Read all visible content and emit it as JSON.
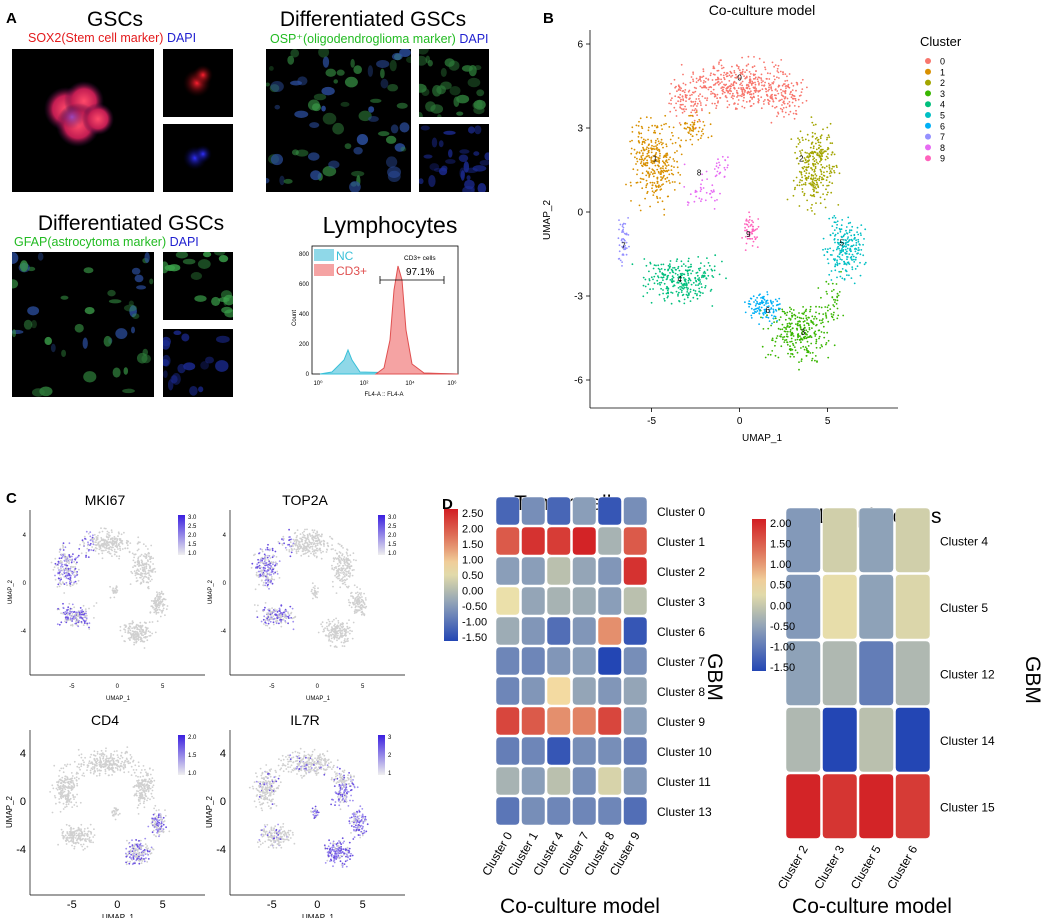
{
  "panelA": {
    "label": "A",
    "gsc": {
      "title": "GSCs",
      "marker": "SOX2(Stem cell marker)",
      "dapi": "DAPI"
    },
    "diff1": {
      "title": "Differentiated GSCs",
      "marker": "OSP⁺(oligodendroglioma marker)",
      "dapi": "DAPI"
    },
    "diff2": {
      "title": "Differentiated GSCs",
      "marker": "GFAP(astrocytoma marker)",
      "dapi": "DAPI"
    },
    "lymph": {
      "title": "Lymphocytes",
      "legend_nc": "NC",
      "legend_cd3": "CD3+",
      "gate_label": "CD3+ cells",
      "gate_value": "97.1%",
      "ylabel": "Count",
      "xlabel": "FL4-A :: FL4-A",
      "yticks": [
        "0",
        "200",
        "400",
        "600",
        "800"
      ],
      "xticks": [
        "10⁰",
        "10²",
        "10⁴",
        "10⁶"
      ]
    }
  },
  "panelB": {
    "label": "B",
    "title": "Co-culture model",
    "legend_title": "Cluster",
    "clusters": [
      {
        "id": "0",
        "color": "#F8766D"
      },
      {
        "id": "1",
        "color": "#D89000"
      },
      {
        "id": "2",
        "color": "#A3A500"
      },
      {
        "id": "3",
        "color": "#39B600"
      },
      {
        "id": "4",
        "color": "#00BF7D"
      },
      {
        "id": "5",
        "color": "#00BFC4"
      },
      {
        "id": "6",
        "color": "#00B0F6"
      },
      {
        "id": "7",
        "color": "#9590FF"
      },
      {
        "id": "8",
        "color": "#E76BF3"
      },
      {
        "id": "9",
        "color": "#FF62BC"
      }
    ],
    "xlabel": "UMAP_1",
    "ylabel": "UMAP_2",
    "xticks": [
      "-5",
      "0",
      "5"
    ],
    "yticks": [
      "6",
      "3",
      "0",
      "-3",
      "-6"
    ]
  },
  "panelC": {
    "label": "C",
    "plots": [
      {
        "gene": "MKI67",
        "scale": [
          "3.0",
          "2.5",
          "2.0",
          "1.5",
          "1.0"
        ]
      },
      {
        "gene": "TOP2A",
        "scale": [
          "3.0",
          "2.5",
          "2.0",
          "1.5",
          "1.0"
        ]
      },
      {
        "gene": "CD4",
        "scale": [
          "2.0",
          "1.5",
          "1.0"
        ]
      },
      {
        "gene": "IL7R",
        "scale": [
          "3",
          "2",
          "1"
        ]
      }
    ],
    "xlabel": "UMAP_1",
    "ylabel": "UMAP_2",
    "xticks": [
      "-5",
      "0",
      "5"
    ],
    "yticks": [
      "4",
      "0",
      "-4"
    ]
  },
  "chart_data": [
    {
      "type": "heatmap",
      "title": "Tumor cells",
      "xlabel": "Co-culture model",
      "ylabel": "GBM",
      "columns": [
        "Cluster 0",
        "Cluster 1",
        "Cluster 4",
        "Cluster 7",
        "Cluster 8",
        "Cluster 9"
      ],
      "rows": [
        "Cluster 0",
        "Cluster 1",
        "Cluster 2",
        "Cluster 3",
        "Cluster 6",
        "Cluster 7",
        "Cluster 8",
        "Cluster 9",
        "Cluster 10",
        "Cluster 11",
        "Cluster 13"
      ],
      "colorbar_ticks": [
        "2.50",
        "2.00",
        "1.50",
        "1.00",
        "0.50",
        "0.00",
        "-0.50",
        "-1.00",
        "-1.50"
      ],
      "range": [
        -1.5,
        2.5
      ],
      "values": [
        [
          -1.1,
          -0.6,
          -1.1,
          -0.4,
          -1.3,
          -0.6
        ],
        [
          1.9,
          2.3,
          2.2,
          2.45,
          -0.1,
          1.9
        ],
        [
          -0.4,
          -0.4,
          0.1,
          -0.3,
          -0.5,
          2.3
        ],
        [
          0.6,
          -0.3,
          -0.1,
          -0.2,
          -0.4,
          0.1
        ],
        [
          -0.2,
          -0.5,
          -1.0,
          -0.5,
          1.4,
          -1.3
        ],
        [
          -0.7,
          -0.7,
          -0.5,
          -0.4,
          -1.5,
          -0.6
        ],
        [
          -0.7,
          -0.5,
          0.8,
          -0.3,
          -0.5,
          -0.3
        ],
        [
          2.1,
          1.9,
          1.4,
          1.5,
          2.1,
          -0.4
        ],
        [
          -0.8,
          -0.7,
          -1.3,
          -0.6,
          -0.6,
          -0.8
        ],
        [
          -0.1,
          -0.4,
          0.1,
          -0.6,
          0.4,
          -0.5
        ],
        [
          -0.9,
          -0.6,
          -0.7,
          -0.7,
          -0.7,
          -1.0
        ]
      ]
    },
    {
      "type": "heatmap",
      "title": "Lymphocytes",
      "xlabel": "Co-culture model",
      "ylabel": "GBM",
      "columns": [
        "Cluster 2",
        "Cluster 3",
        "Cluster 5",
        "Cluster 6"
      ],
      "rows": [
        "Cluster 4",
        "Cluster 5",
        "Cluster 12",
        "Cluster 14",
        "Cluster 15"
      ],
      "colorbar_ticks": [
        "2.00",
        "1.50",
        "1.00",
        "0.50",
        "0.00",
        "-0.50",
        "-1.00",
        "-1.50"
      ],
      "range": [
        -1.5,
        2.0
      ],
      "values": [
        [
          -0.6,
          0.1,
          -0.5,
          0.1
        ],
        [
          -0.6,
          0.3,
          -0.5,
          0.2
        ],
        [
          -0.5,
          -0.2,
          -0.9,
          -0.2
        ],
        [
          -0.2,
          -1.5,
          -0.1,
          -1.5
        ],
        [
          1.95,
          1.8,
          1.95,
          1.75
        ]
      ]
    }
  ]
}
